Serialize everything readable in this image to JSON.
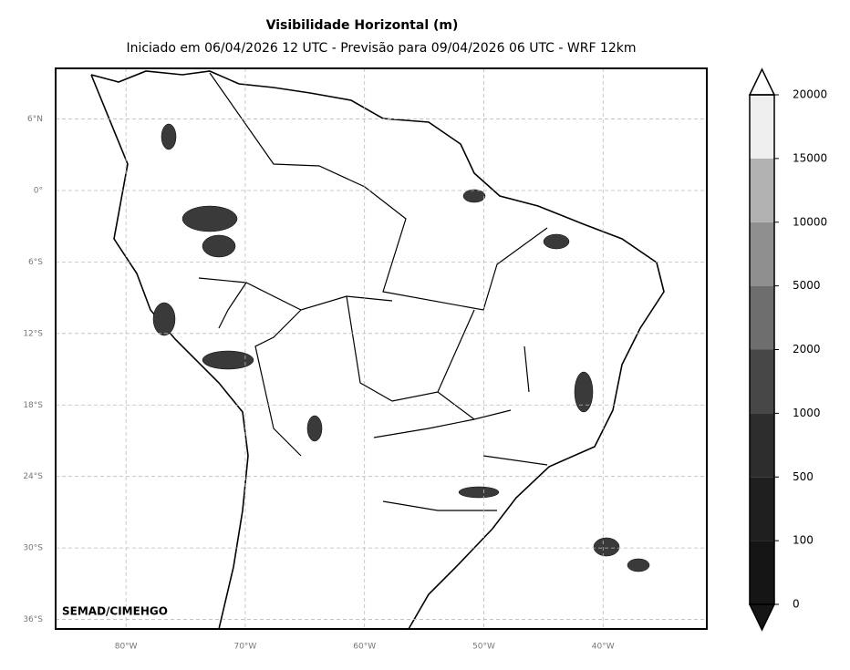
{
  "header": {
    "title": "Visibilidade Horizontal (m)",
    "subtitle": "Iniciado em 06/04/2026 12 UTC - Previsão para 09/04/2026 06 UTC - WRF 12km"
  },
  "map": {
    "credit": "SEMAD/CIMEHGO",
    "xlim": [
      -85.9,
      -31.3
    ],
    "ylim": [
      -36.8,
      10.25
    ],
    "xticks": [
      {
        "value": -80,
        "label": "80°W"
      },
      {
        "value": -70,
        "label": "70°W"
      },
      {
        "value": -60,
        "label": "60°W"
      },
      {
        "value": -50,
        "label": "50°W"
      },
      {
        "value": -40,
        "label": "40°W"
      }
    ],
    "yticks": [
      {
        "value": 6,
        "label": "6°N"
      },
      {
        "value": 0,
        "label": "0°"
      },
      {
        "value": -6,
        "label": "6°S"
      },
      {
        "value": -12,
        "label": "12°S"
      },
      {
        "value": -18,
        "label": "18°S"
      },
      {
        "value": -24,
        "label": "24°S"
      },
      {
        "value": -30,
        "label": "30°S"
      },
      {
        "value": -36,
        "label": "36°S"
      }
    ]
  },
  "colorbar": {
    "levels": [
      0,
      100,
      500,
      1000,
      2000,
      5000,
      10000,
      15000,
      20000
    ],
    "colors": [
      "#151515",
      "#1f1f1f",
      "#2d2d2d",
      "#474747",
      "#6e6e6e",
      "#8f8f8f",
      "#b2b2b2",
      "#efefef"
    ]
  }
}
